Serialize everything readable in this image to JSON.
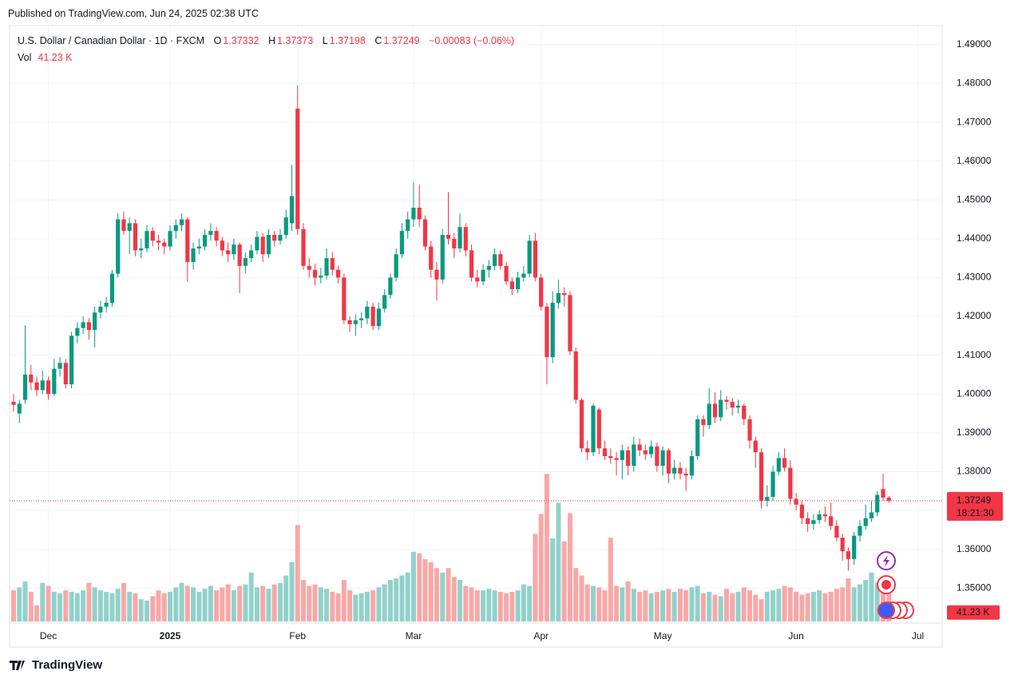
{
  "published": "Published on TradingView.com, Jun 24, 2025 02:38 UTC",
  "brand": "TradingView",
  "chart_data": {
    "type": "candlestick",
    "symbol_label": "U.S. Dollar / Canadian Dollar · 1D · FXCM",
    "ohlc_labels": {
      "open": "O",
      "high": "H",
      "low": "L",
      "close": "C"
    },
    "change_label": "−0.00083 (−0.06%)",
    "countdown": "18:21:30",
    "up_color": "#089981",
    "down_color": "#f23645",
    "volume_up_color": "#92d1cb",
    "volume_down_color": "#f7a8a7",
    "grid": true,
    "last_price_line": true,
    "ylim": [
      1.3414,
      1.4943
    ],
    "yticks": [
      {
        "value": 1.35,
        "label": "1.35000"
      },
      {
        "value": 1.36,
        "label": "1.36000"
      },
      {
        "value": 1.37,
        "label": "1.37000"
      },
      {
        "value": 1.38,
        "label": "1.38000"
      },
      {
        "value": 1.39,
        "label": "1.39000"
      },
      {
        "value": 1.4,
        "label": "1.40000"
      },
      {
        "value": 1.41,
        "label": "1.41000"
      },
      {
        "value": 1.42,
        "label": "1.42000"
      },
      {
        "value": 1.43,
        "label": "1.43000"
      },
      {
        "value": 1.44,
        "label": "1.44000"
      },
      {
        "value": 1.45,
        "label": "1.45000"
      },
      {
        "value": 1.46,
        "label": "1.46000"
      },
      {
        "value": 1.47,
        "label": "1.47000"
      },
      {
        "value": 1.48,
        "label": "1.48000"
      },
      {
        "value": 1.49,
        "label": "1.49000"
      }
    ],
    "xticks": [
      {
        "value": 6,
        "label": "Dec"
      },
      {
        "value": 27,
        "label": "2025"
      },
      {
        "value": 49,
        "label": "Feb"
      },
      {
        "value": 69,
        "label": "Mar"
      },
      {
        "value": 91,
        "label": "Apr"
      },
      {
        "value": 112,
        "label": "May"
      },
      {
        "value": 135,
        "label": "Jun"
      },
      {
        "value": 156,
        "label": "Jul"
      }
    ],
    "vlim": [
      0,
      800
    ],
    "open": [
      1.398,
      1.395,
      1.3985,
      1.405,
      1.403,
      1.401,
      1.4035,
      1.4,
      1.4065,
      1.408,
      1.4025,
      1.415,
      1.417,
      1.4185,
      1.4165,
      1.421,
      1.4225,
      1.4235,
      1.431,
      1.445,
      1.442,
      1.444,
      1.437,
      1.4375,
      1.442,
      1.4395,
      1.439,
      1.438,
      1.442,
      1.4435,
      1.445,
      1.434,
      1.4375,
      1.438,
      1.441,
      1.442,
      1.4395,
      1.437,
      1.436,
      1.4385,
      1.433,
      1.435,
      1.437,
      1.4405,
      1.436,
      1.441,
      1.4395,
      1.441,
      1.444,
      1.4735,
      1.4425,
      1.433,
      1.432,
      1.43,
      1.4305,
      1.435,
      1.432,
      1.43,
      1.419,
      1.418,
      1.419,
      1.4195,
      1.4225,
      1.4175,
      1.422,
      1.4255,
      1.43,
      1.436,
      1.442,
      1.445,
      1.448,
      1.445,
      1.438,
      1.432,
      1.4295,
      1.441,
      1.44,
      1.4375,
      1.443,
      1.437,
      1.43,
      1.429,
      1.432,
      1.433,
      1.436,
      1.433,
      1.429,
      1.427,
      1.43,
      1.431,
      1.4395,
      1.43,
      1.4225,
      1.4095,
      1.4235,
      1.426,
      1.4255,
      1.411,
      1.3985,
      1.386,
      1.385,
      1.396,
      1.386,
      1.384,
      1.3835,
      1.383,
      1.3855,
      1.3815,
      1.387,
      1.3855,
      1.3845,
      1.3865,
      1.3815,
      1.3855,
      1.3795,
      1.381,
      1.3795,
      1.379,
      1.384,
      1.3935,
      1.392,
      1.3975,
      1.394,
      1.3985,
      1.398,
      1.3965,
      1.397,
      1.3935,
      1.388,
      1.385,
      1.3725,
      1.3735,
      1.38,
      1.3835,
      1.381,
      1.373,
      1.3715,
      1.368,
      1.3665,
      1.3675,
      1.369,
      1.3685,
      1.366,
      1.363,
      1.3595,
      1.3575,
      1.3635,
      1.366,
      1.368,
      1.3695,
      1.3755,
      1.37332
    ],
    "high": [
      1.4,
      1.3985,
      1.4177,
      1.4075,
      1.4045,
      1.406,
      1.4045,
      1.409,
      1.4095,
      1.409,
      1.416,
      1.4185,
      1.42,
      1.4195,
      1.4225,
      1.424,
      1.425,
      1.432,
      1.4465,
      1.447,
      1.4455,
      1.445,
      1.44,
      1.4435,
      1.443,
      1.441,
      1.44,
      1.4435,
      1.445,
      1.4465,
      1.4455,
      1.439,
      1.44,
      1.4425,
      1.444,
      1.443,
      1.4405,
      1.439,
      1.44,
      1.439,
      1.4365,
      1.4385,
      1.442,
      1.4415,
      1.4425,
      1.442,
      1.4425,
      1.4475,
      1.459,
      1.4795,
      1.444,
      1.435,
      1.4335,
      1.4325,
      1.4375,
      1.4365,
      1.433,
      1.431,
      1.42,
      1.4205,
      1.421,
      1.424,
      1.4235,
      1.4235,
      1.427,
      1.431,
      1.4375,
      1.444,
      1.447,
      1.4545,
      1.454,
      1.446,
      1.4395,
      1.434,
      1.4425,
      1.452,
      1.4415,
      1.4465,
      1.444,
      1.4385,
      1.432,
      1.4335,
      1.4345,
      1.4375,
      1.437,
      1.434,
      1.43,
      1.4315,
      1.433,
      1.441,
      1.4415,
      1.431,
      1.4235,
      1.4265,
      1.4295,
      1.4275,
      1.4265,
      1.412,
      1.399,
      1.388,
      1.3975,
      1.3965,
      1.388,
      1.386,
      1.385,
      1.387,
      1.3865,
      1.389,
      1.3885,
      1.387,
      1.388,
      1.3875,
      1.3865,
      1.386,
      1.383,
      1.3825,
      1.381,
      1.3855,
      1.3945,
      1.3945,
      1.4015,
      1.4005,
      1.401,
      1.3995,
      1.399,
      1.3985,
      1.3975,
      1.3945,
      1.389,
      1.386,
      1.3765,
      1.3815,
      1.385,
      1.386,
      1.383,
      1.3745,
      1.3725,
      1.3695,
      1.369,
      1.37,
      1.371,
      1.372,
      1.3675,
      1.364,
      1.3605,
      1.3645,
      1.3675,
      1.3715,
      1.3725,
      1.375,
      1.3795,
      1.37373
    ],
    "low": [
      1.3955,
      1.3925,
      1.3975,
      1.401,
      1.3995,
      1.4,
      1.3985,
      1.3995,
      1.4045,
      1.4015,
      1.4015,
      1.413,
      1.4155,
      1.414,
      1.412,
      1.4195,
      1.421,
      1.4225,
      1.43,
      1.441,
      1.436,
      1.4355,
      1.435,
      1.4365,
      1.438,
      1.437,
      1.436,
      1.437,
      1.44,
      1.442,
      1.429,
      1.432,
      1.436,
      1.437,
      1.4395,
      1.438,
      1.4355,
      1.434,
      1.4345,
      1.426,
      1.431,
      1.434,
      1.436,
      1.434,
      1.435,
      1.438,
      1.4385,
      1.44,
      1.442,
      1.441,
      1.432,
      1.43,
      1.428,
      1.4285,
      1.4295,
      1.4305,
      1.4285,
      1.418,
      1.416,
      1.415,
      1.417,
      1.418,
      1.4165,
      1.4165,
      1.421,
      1.4245,
      1.429,
      1.435,
      1.44,
      1.443,
      1.443,
      1.437,
      1.43,
      1.424,
      1.4285,
      1.4385,
      1.435,
      1.4365,
      1.4355,
      1.429,
      1.4275,
      1.428,
      1.43,
      1.432,
      1.432,
      1.428,
      1.4255,
      1.426,
      1.429,
      1.43,
      1.429,
      1.4215,
      1.4025,
      1.408,
      1.422,
      1.4225,
      1.41,
      1.3975,
      1.385,
      1.383,
      1.384,
      1.3845,
      1.383,
      1.382,
      1.379,
      1.378,
      1.379,
      1.38,
      1.384,
      1.383,
      1.3835,
      1.38,
      1.379,
      1.377,
      1.378,
      1.378,
      1.375,
      1.378,
      1.383,
      1.389,
      1.391,
      1.3925,
      1.393,
      1.396,
      1.3945,
      1.395,
      1.392,
      1.386,
      1.381,
      1.3705,
      1.371,
      1.3725,
      1.379,
      1.38,
      1.3715,
      1.37,
      1.3665,
      1.3645,
      1.365,
      1.3665,
      1.367,
      1.365,
      1.362,
      1.357,
      1.3545,
      1.356,
      1.362,
      1.365,
      1.367,
      1.3685,
      1.3725,
      1.37198
    ],
    "close": [
      1.3972,
      1.3975,
      1.405,
      1.403,
      1.401,
      1.4035,
      1.4,
      1.4065,
      1.408,
      1.4025,
      1.415,
      1.417,
      1.4185,
      1.4165,
      1.421,
      1.4225,
      1.4235,
      1.431,
      1.445,
      1.442,
      1.444,
      1.437,
      1.4375,
      1.442,
      1.4395,
      1.439,
      1.438,
      1.442,
      1.4435,
      1.445,
      1.434,
      1.4375,
      1.438,
      1.441,
      1.442,
      1.4395,
      1.437,
      1.436,
      1.4385,
      1.433,
      1.435,
      1.437,
      1.4405,
      1.436,
      1.441,
      1.4395,
      1.441,
      1.4455,
      1.451,
      1.4425,
      1.433,
      1.432,
      1.43,
      1.4305,
      1.435,
      1.432,
      1.43,
      1.419,
      1.418,
      1.419,
      1.4195,
      1.4225,
      1.4175,
      1.422,
      1.4255,
      1.43,
      1.436,
      1.442,
      1.445,
      1.448,
      1.445,
      1.438,
      1.432,
      1.4295,
      1.441,
      1.44,
      1.4375,
      1.443,
      1.437,
      1.43,
      1.429,
      1.432,
      1.433,
      1.436,
      1.433,
      1.429,
      1.427,
      1.43,
      1.431,
      1.4395,
      1.43,
      1.4225,
      1.4095,
      1.4235,
      1.426,
      1.4255,
      1.411,
      1.3985,
      1.386,
      1.385,
      1.397,
      1.386,
      1.384,
      1.3835,
      1.383,
      1.3855,
      1.3815,
      1.387,
      1.3855,
      1.3845,
      1.3865,
      1.3815,
      1.3855,
      1.3795,
      1.381,
      1.3795,
      1.379,
      1.384,
      1.3935,
      1.392,
      1.3975,
      1.394,
      1.3985,
      1.398,
      1.3965,
      1.397,
      1.3935,
      1.388,
      1.385,
      1.3725,
      1.3735,
      1.38,
      1.3835,
      1.381,
      1.373,
      1.3715,
      1.368,
      1.3665,
      1.3675,
      1.369,
      1.3685,
      1.366,
      1.363,
      1.3595,
      1.3575,
      1.3635,
      1.366,
      1.368,
      1.3695,
      1.374,
      1.3733,
      1.37249
    ],
    "volume": {
      "name": "Vol",
      "values": [
        42,
        46,
        54,
        40,
        22,
        52,
        48,
        40,
        38,
        42,
        40,
        38,
        42,
        52,
        46,
        42,
        40,
        38,
        44,
        52,
        40,
        38,
        30,
        28,
        34,
        42,
        38,
        40,
        46,
        52,
        48,
        46,
        40,
        44,
        48,
        42,
        46,
        50,
        42,
        48,
        50,
        66,
        46,
        48,
        44,
        50,
        52,
        62,
        80,
        130,
        56,
        48,
        50,
        46,
        44,
        40,
        38,
        56,
        42,
        36,
        38,
        40,
        42,
        46,
        50,
        56,
        58,
        62,
        66,
        94,
        92,
        84,
        80,
        72,
        66,
        72,
        60,
        56,
        48,
        46,
        42,
        42,
        44,
        42,
        40,
        38,
        40,
        42,
        50,
        48,
        118,
        145,
        199,
        112,
        160,
        108,
        146,
        72,
        62,
        50,
        48,
        46,
        42,
        113,
        48,
        46,
        54,
        44,
        40,
        42,
        38,
        40,
        42,
        44,
        40,
        44,
        42,
        46,
        48,
        38,
        40,
        36,
        34,
        44,
        38,
        40,
        46,
        42,
        36,
        30,
        40,
        42,
        44,
        48,
        46,
        40,
        36,
        38,
        40,
        42,
        38,
        40,
        44,
        46,
        58,
        46,
        50,
        56,
        66,
        52,
        42,
        41.23
      ],
      "value_labels": [
        null,
        null,
        null,
        null,
        null,
        null,
        null,
        null,
        null,
        null,
        null,
        null,
        null,
        null,
        null,
        null,
        null,
        null,
        null,
        null,
        null,
        null,
        null,
        null,
        null,
        null,
        null,
        null,
        null,
        null,
        null,
        null,
        null,
        null,
        null,
        null,
        null,
        null,
        null,
        null,
        null,
        null,
        null,
        null,
        null,
        null,
        null,
        null,
        null,
        null,
        null,
        null,
        null,
        null,
        null,
        null,
        null,
        null,
        null,
        null,
        null,
        null,
        null,
        null,
        null,
        null,
        null,
        null,
        null,
        null,
        null,
        null,
        null,
        null,
        null,
        null,
        null,
        null,
        null,
        null,
        null,
        null,
        null,
        null,
        null,
        null,
        null,
        null,
        null,
        null,
        null,
        null,
        null,
        null,
        null,
        null,
        null,
        null,
        null,
        null,
        null,
        null,
        null,
        null,
        null,
        null,
        null,
        null,
        null,
        null,
        null,
        null,
        null,
        null,
        null,
        null,
        null,
        null,
        null,
        null,
        null,
        null,
        null,
        null,
        null,
        null,
        null,
        null,
        null,
        null,
        null,
        null,
        null,
        null,
        null,
        null,
        null,
        null,
        null,
        null,
        null,
        null,
        null,
        null,
        null,
        null,
        null,
        null,
        null,
        null,
        null,
        "41.23 K"
      ]
    }
  }
}
